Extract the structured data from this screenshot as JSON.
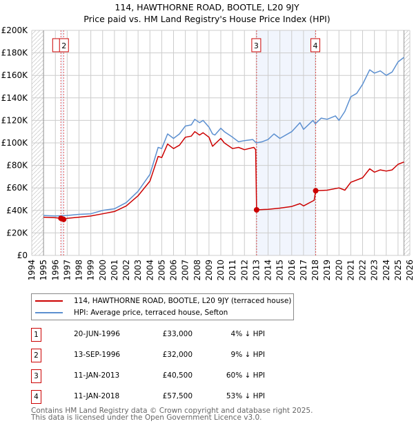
{
  "chart_data": {
    "type": "line",
    "title": "114, HAWTHORNE ROAD, BOOTLE, L20 9JY",
    "subtitle": "Price paid vs. HM Land Registry's House Price Index (HPI)",
    "xlim": [
      1994,
      2026
    ],
    "ylim": [
      0,
      200000
    ],
    "x_ticks": [
      "1994",
      "1995",
      "1996",
      "1997",
      "1998",
      "1999",
      "2000",
      "2001",
      "2002",
      "2003",
      "2004",
      "2005",
      "2006",
      "2007",
      "2008",
      "2009",
      "2010",
      "2011",
      "2012",
      "2013",
      "2014",
      "2015",
      "2016",
      "2017",
      "2018",
      "2019",
      "2020",
      "2021",
      "2022",
      "2023",
      "2024",
      "2025",
      "2026"
    ],
    "y_ticks": [
      {
        "v": 0,
        "label": "£0"
      },
      {
        "v": 20000,
        "label": "£20K"
      },
      {
        "v": 40000,
        "label": "£40K"
      },
      {
        "v": 60000,
        "label": "£60K"
      },
      {
        "v": 80000,
        "label": "£80K"
      },
      {
        "v": 100000,
        "label": "£100K"
      },
      {
        "v": 120000,
        "label": "£120K"
      },
      {
        "v": 140000,
        "label": "£140K"
      },
      {
        "v": 160000,
        "label": "£160K"
      },
      {
        "v": 180000,
        "label": "£180K"
      },
      {
        "v": 200000,
        "label": "£200K"
      }
    ],
    "grid": true,
    "hatched_ranges": [
      [
        1994,
        1995
      ],
      [
        2025.5,
        2026
      ]
    ],
    "series": [
      {
        "name": "114, HAWTHORNE ROAD, BOOTLE, L20 9JY (terraced house)",
        "color": "#cc0000",
        "points": [
          [
            1995,
            34
          ],
          [
            1996,
            33.5
          ],
          [
            1996.47,
            33
          ],
          [
            1996.7,
            32
          ],
          [
            1997,
            33
          ],
          [
            1998,
            34
          ],
          [
            1999,
            35
          ],
          [
            2000,
            37
          ],
          [
            2001,
            39
          ],
          [
            2002,
            44
          ],
          [
            2003,
            53
          ],
          [
            2004,
            66
          ],
          [
            2004.7,
            88
          ],
          [
            2005,
            87
          ],
          [
            2005.5,
            99
          ],
          [
            2006,
            95
          ],
          [
            2006.5,
            98
          ],
          [
            2007,
            105
          ],
          [
            2007.5,
            106
          ],
          [
            2007.8,
            110
          ],
          [
            2008.2,
            107
          ],
          [
            2008.5,
            109
          ],
          [
            2009,
            105
          ],
          [
            2009.3,
            97
          ],
          [
            2010,
            104
          ],
          [
            2010.3,
            100
          ],
          [
            2011,
            95
          ],
          [
            2011.5,
            96
          ],
          [
            2012,
            94
          ],
          [
            2012.8,
            96
          ],
          [
            2012.95,
            94
          ],
          [
            2013.03,
            40.5
          ],
          [
            2014,
            41
          ],
          [
            2015,
            42
          ],
          [
            2016,
            43.5
          ],
          [
            2016.7,
            46
          ],
          [
            2017,
            44
          ],
          [
            2017.9,
            49
          ],
          [
            2018.03,
            57.5
          ],
          [
            2019,
            58
          ],
          [
            2020,
            60
          ],
          [
            2020.5,
            58
          ],
          [
            2021,
            65
          ],
          [
            2022,
            69
          ],
          [
            2022.6,
            77
          ],
          [
            2023,
            74
          ],
          [
            2023.5,
            76
          ],
          [
            2024,
            75
          ],
          [
            2024.5,
            76
          ],
          [
            2025,
            81
          ],
          [
            2025.5,
            83
          ]
        ]
      },
      {
        "name": "HPI: Average price, terraced house, Sefton",
        "color": "#5b8fd0",
        "points": [
          [
            1995,
            35.5
          ],
          [
            1996,
            35
          ],
          [
            1997,
            35.5
          ],
          [
            1998,
            36.5
          ],
          [
            1999,
            37
          ],
          [
            2000,
            40
          ],
          [
            2001,
            41.5
          ],
          [
            2002,
            47
          ],
          [
            2003,
            57
          ],
          [
            2004,
            72
          ],
          [
            2004.7,
            96
          ],
          [
            2005,
            95
          ],
          [
            2005.5,
            108
          ],
          [
            2006,
            104
          ],
          [
            2006.5,
            108
          ],
          [
            2007,
            115
          ],
          [
            2007.5,
            116
          ],
          [
            2007.8,
            121
          ],
          [
            2008.2,
            118
          ],
          [
            2008.5,
            120
          ],
          [
            2009,
            114
          ],
          [
            2009.3,
            108
          ],
          [
            2009.5,
            107
          ],
          [
            2010,
            113
          ],
          [
            2010.3,
            110
          ],
          [
            2011,
            105
          ],
          [
            2011.5,
            101
          ],
          [
            2012,
            102
          ],
          [
            2012.7,
            103
          ],
          [
            2013,
            100
          ],
          [
            2013.5,
            101
          ],
          [
            2014,
            103
          ],
          [
            2014.5,
            108
          ],
          [
            2015,
            104
          ],
          [
            2016,
            110
          ],
          [
            2016.7,
            118
          ],
          [
            2017,
            112
          ],
          [
            2017.8,
            120
          ],
          [
            2018,
            117
          ],
          [
            2018.5,
            122
          ],
          [
            2019,
            121
          ],
          [
            2019.7,
            124
          ],
          [
            2020,
            120
          ],
          [
            2020.5,
            128
          ],
          [
            2021,
            141
          ],
          [
            2021.5,
            144
          ],
          [
            2022,
            152
          ],
          [
            2022.6,
            165
          ],
          [
            2023,
            162
          ],
          [
            2023.5,
            164
          ],
          [
            2024,
            160
          ],
          [
            2024.5,
            163
          ],
          [
            2025,
            172
          ],
          [
            2025.5,
            176
          ]
        ]
      }
    ],
    "sales": [
      {
        "id": "1",
        "x": 1996.47,
        "y": 33000,
        "date": "20-JUN-1996",
        "price": "£33,000",
        "hpi": "4% ↓ HPI"
      },
      {
        "id": "2",
        "x": 1996.7,
        "y": 32000,
        "date": "13-SEP-1996",
        "price": "£32,000",
        "hpi": "9% ↓ HPI"
      },
      {
        "id": "3",
        "x": 2013.03,
        "y": 40500,
        "date": "11-JAN-2013",
        "price": "£40,500",
        "hpi": "60% ↓ HPI"
      },
      {
        "id": "4",
        "x": 2018.03,
        "y": 57500,
        "date": "11-JAN-2018",
        "price": "£57,500",
        "hpi": "53% ↓ HPI"
      }
    ],
    "legend_position": "bottom"
  },
  "footer": {
    "line1": "Contains HM Land Registry data © Crown copyright and database right 2025.",
    "line2": "This data is licensed under the Open Government Licence v3.0."
  }
}
